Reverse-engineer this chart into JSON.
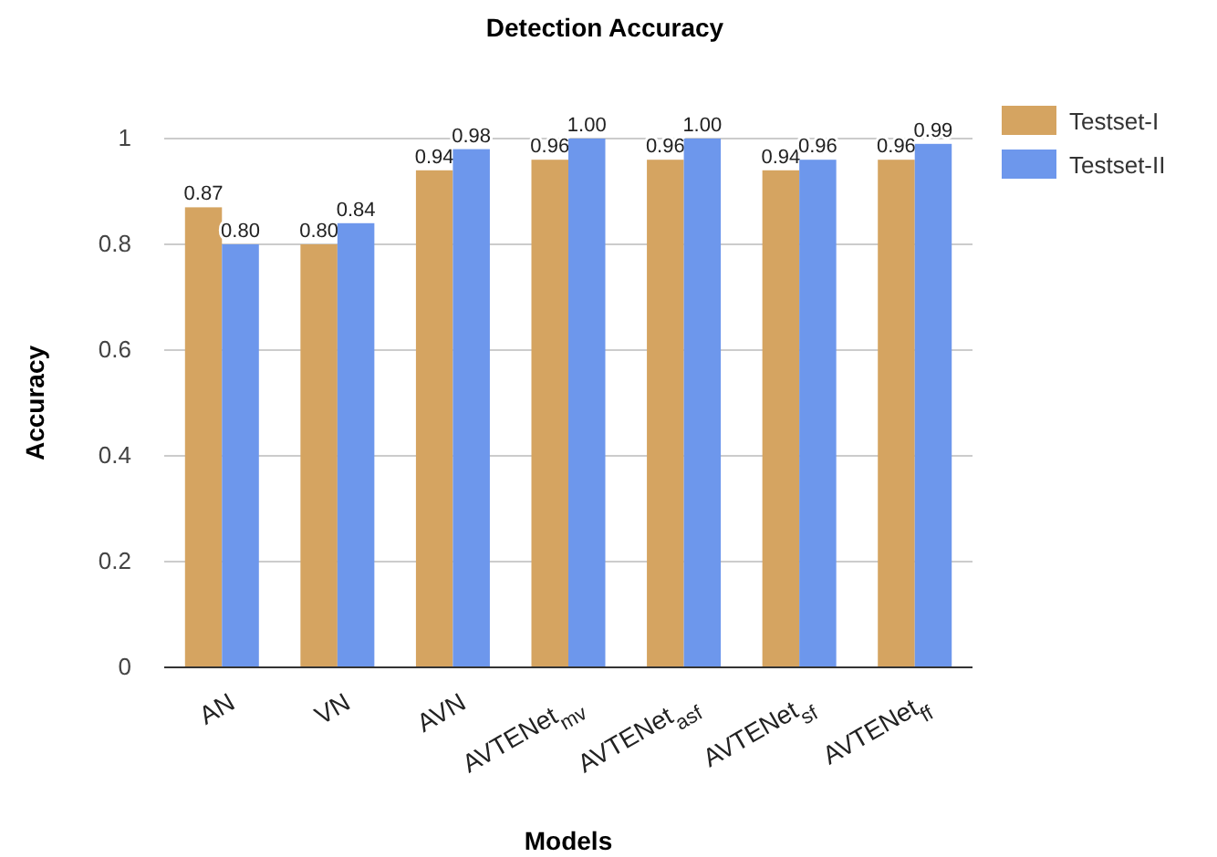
{
  "chart_data": {
    "type": "bar",
    "title": "Detection Accuracy",
    "xlabel": "Models",
    "ylabel": "Accuracy",
    "categories": [
      "AN",
      "VN",
      "AVN",
      "AVTENet$_{mv}$",
      "AVTENet$_{asf}$",
      "AVTENet$_{sf}$",
      "AVTENet$_{ff}$"
    ],
    "series": [
      {
        "name": "Testset-I",
        "color": "#d5a461",
        "values": [
          0.87,
          0.8,
          0.94,
          0.96,
          0.96,
          0.94,
          0.96
        ],
        "value_labels": [
          "0.87",
          "0.80",
          "0.94",
          "0.96",
          "0.96",
          "0.94",
          "0.96"
        ]
      },
      {
        "name": "Testset-II",
        "color": "#6d97ec",
        "values": [
          0.8,
          0.84,
          0.98,
          1.0,
          1.0,
          0.96,
          0.99
        ],
        "value_labels": [
          "0.80",
          "0.84",
          "0.98",
          "1.00",
          "1.00",
          "0.96",
          "0.99"
        ]
      }
    ],
    "ylim": [
      0,
      1
    ],
    "yticks": [
      0,
      0.2,
      0.4,
      0.6,
      0.8,
      1
    ],
    "grid": "y",
    "legend": "top right"
  }
}
